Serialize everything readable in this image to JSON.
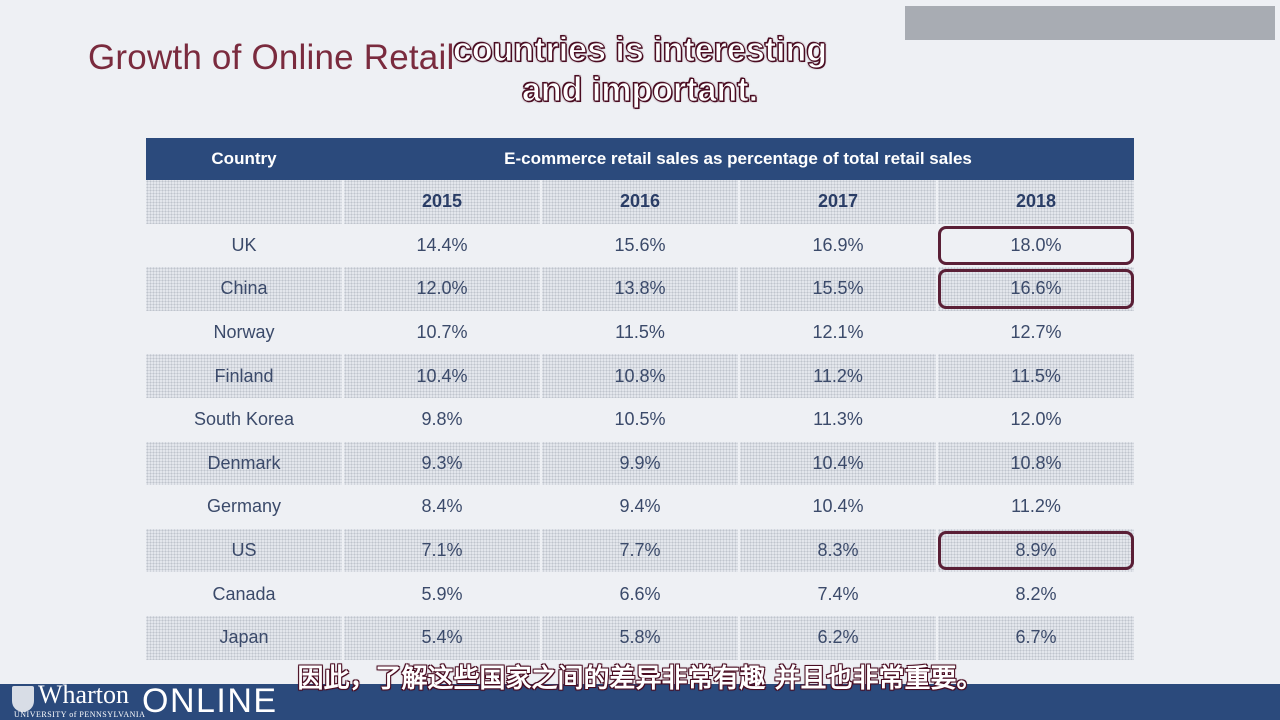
{
  "slide": {
    "title": "Growth of Online Retail"
  },
  "captions": {
    "english_line1": "countries is interesting",
    "english_line2": "and important.",
    "chinese": "因此，了解这些国家之间的差异非常有趣 并且也非常重要。"
  },
  "table": {
    "header_country": "Country",
    "header_metric": "E-commerce retail sales as percentage of total retail sales",
    "years": [
      "2015",
      "2016",
      "2017",
      "2018"
    ],
    "rows": [
      {
        "country": "UK",
        "values": [
          "14.4%",
          "15.6%",
          "16.9%",
          "18.0%"
        ],
        "highlight_2018": true
      },
      {
        "country": "China",
        "values": [
          "12.0%",
          "13.8%",
          "15.5%",
          "16.6%"
        ],
        "highlight_2018": true
      },
      {
        "country": "Norway",
        "values": [
          "10.7%",
          "11.5%",
          "12.1%",
          "12.7%"
        ],
        "highlight_2018": false
      },
      {
        "country": "Finland",
        "values": [
          "10.4%",
          "10.8%",
          "11.2%",
          "11.5%"
        ],
        "highlight_2018": false
      },
      {
        "country": "South Korea",
        "values": [
          "9.8%",
          "10.5%",
          "11.3%",
          "12.0%"
        ],
        "highlight_2018": false
      },
      {
        "country": "Denmark",
        "values": [
          "9.3%",
          "9.9%",
          "10.4%",
          "10.8%"
        ],
        "highlight_2018": false
      },
      {
        "country": "Germany",
        "values": [
          "8.4%",
          "9.4%",
          "10.4%",
          "11.2%"
        ],
        "highlight_2018": false
      },
      {
        "country": "US",
        "values": [
          "7.1%",
          "7.7%",
          "8.3%",
          "8.9%"
        ],
        "highlight_2018": true
      },
      {
        "country": "Canada",
        "values": [
          "5.9%",
          "6.6%",
          "7.4%",
          "8.2%"
        ],
        "highlight_2018": false
      },
      {
        "country": "Japan",
        "values": [
          "5.4%",
          "5.8%",
          "6.2%",
          "6.7%"
        ],
        "highlight_2018": false
      }
    ]
  },
  "footer": {
    "logo_word": "Wharton",
    "logo_sub": "UNIVERSITY of PENNSYLVANIA",
    "logo_online": "ONLINE"
  },
  "colors": {
    "title": "#7a2b3e",
    "header_bg": "#2b4a7c",
    "highlight_border": "#5a1f36"
  }
}
